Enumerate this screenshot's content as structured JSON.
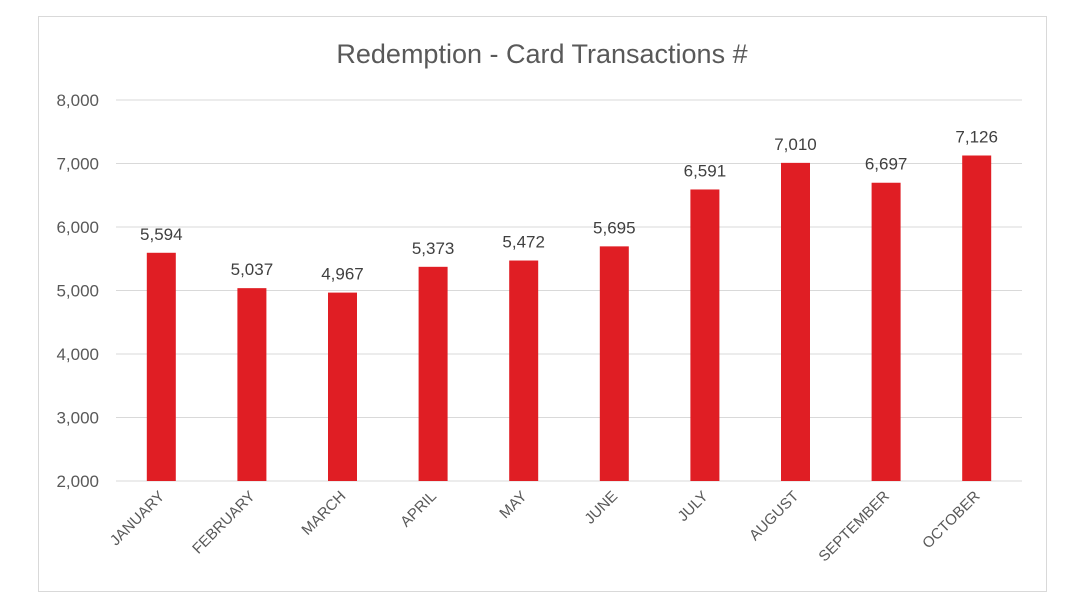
{
  "chart_data": {
    "type": "bar",
    "title": "Redemption - Card Transactions #",
    "xlabel": "",
    "ylabel": "",
    "categories": [
      "JANUARY",
      "FEBRUARY",
      "MARCH",
      "APRIL",
      "MAY",
      "JUNE",
      "JULY",
      "AUGUST",
      "SEPTEMBER",
      "OCTOBER"
    ],
    "series": [
      {
        "values": [
          5594,
          5037,
          4967,
          5373,
          5472,
          5695,
          6591,
          7010,
          6697,
          7126
        ],
        "color": "#e01e24"
      }
    ],
    "data_labels": [
      "5,594",
      "5,037",
      "4,967",
      "5,373",
      "5,472",
      "5,695",
      "6,591",
      "7,010",
      "6,697",
      "7,126"
    ],
    "ylim": [
      2000,
      8000
    ],
    "yticks": [
      2000,
      3000,
      4000,
      5000,
      6000,
      7000,
      8000
    ],
    "ytick_labels": [
      "2,000",
      "3,000",
      "4,000",
      "5,000",
      "6,000",
      "7,000",
      "8,000"
    ],
    "grid": true,
    "legend": "none"
  }
}
